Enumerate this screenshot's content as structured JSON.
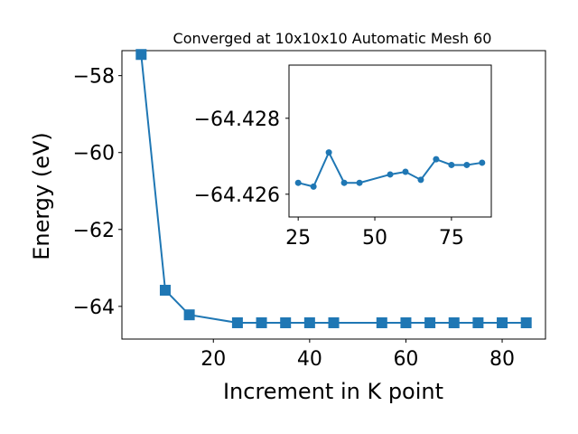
{
  "chart_data": [
    {
      "type": "line",
      "title": "Converged at 10x10x10 Automatic Mesh 60",
      "xlabel": "Increment in K point",
      "ylabel": "Energy (eV)",
      "xlim": [
        1,
        89
      ],
      "ylim": [
        -64.85,
        -57.35
      ],
      "xticks": [
        20,
        40,
        60,
        80
      ],
      "yticks": [
        -58,
        -60,
        -62,
        -64
      ],
      "ytick_labels": [
        "−58",
        "−60",
        "−62",
        "−64"
      ],
      "grid": false,
      "marker": "square",
      "color": "#1f77b4",
      "series": [
        {
          "x": [
            5,
            10,
            15,
            25,
            30,
            35,
            40,
            45,
            55,
            60,
            65,
            70,
            75,
            80,
            85
          ],
          "values": [
            -57.45,
            -63.58,
            -64.22,
            -64.4263,
            -64.4262,
            -64.4271,
            -64.4263,
            -64.4263,
            -64.42652,
            -64.42659,
            -64.42638,
            -64.42692,
            -64.42677,
            -64.42677,
            -64.42683
          ]
        }
      ]
    },
    {
      "type": "line",
      "title": "",
      "xlabel": "",
      "ylabel": "",
      "xlim": [
        22,
        88
      ],
      "ylim": [
        -64.4254,
        -64.4294
      ],
      "y_inverted": true,
      "xticks": [
        25,
        50,
        75
      ],
      "yticks": [
        -64.428,
        -64.426
      ],
      "ytick_labels": [
        "−64.428",
        "−64.426"
      ],
      "grid": false,
      "marker": "circle",
      "color": "#1f77b4",
      "series": [
        {
          "x": [
            25,
            30,
            35,
            40,
            45,
            55,
            60,
            65,
            70,
            75,
            80,
            85
          ],
          "values": [
            -64.4263,
            -64.4262,
            -64.4271,
            -64.4263,
            -64.4263,
            -64.42652,
            -64.42659,
            -64.42638,
            -64.42692,
            -64.42677,
            -64.42677,
            -64.42683
          ]
        }
      ]
    }
  ]
}
